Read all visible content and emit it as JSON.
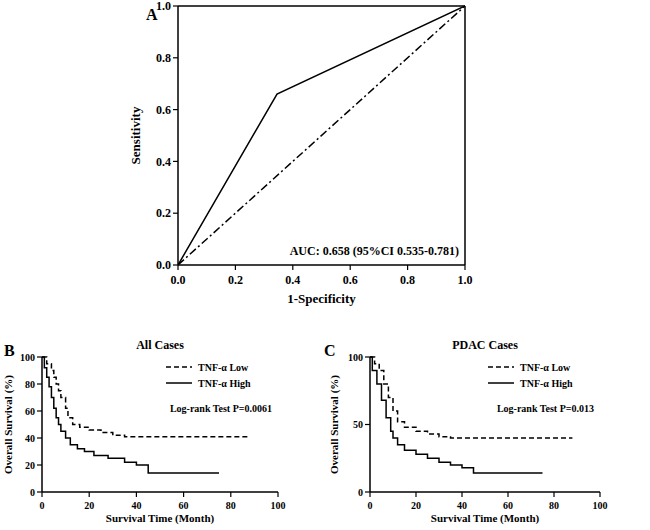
{
  "chart_data": [
    {
      "type": "line",
      "panel": "A",
      "x_label": "1-Specificity",
      "y_label": "Sensitivity",
      "xlim": [
        0,
        1
      ],
      "ylim": [
        0,
        1
      ],
      "xticks": [
        {
          "value": 0,
          "label": "0.0"
        },
        0.2,
        0.4,
        0.6,
        0.8,
        {
          "value": 1,
          "label": "1.0"
        }
      ],
      "yticks": [
        {
          "value": 0,
          "label": "0.0"
        },
        0.2,
        0.4,
        0.6,
        0.8,
        {
          "value": 1,
          "label": "1.0"
        }
      ],
      "annotations": [
        "AUC: 0.658 (95%CI 0.535-0.781)"
      ],
      "series": [
        {
          "x": [
            0,
            0.345,
            1
          ],
          "values": [
            0,
            0.66,
            1
          ],
          "color": "#000000",
          "line_style": "solid"
        },
        {
          "x": [
            0,
            1
          ],
          "values": [
            0,
            1
          ],
          "color": "#000000",
          "line_style": "dashdot"
        }
      ]
    },
    {
      "type": "step",
      "panel": "B",
      "title": "All Cases",
      "x_label": "Survival Time (Month)",
      "y_label": "Overall Survival (%)",
      "xlim": [
        0,
        100
      ],
      "ylim": [
        0,
        100
      ],
      "xticks": [
        0,
        20,
        40,
        60,
        80,
        100
      ],
      "yticks": [
        0,
        20,
        40,
        60,
        80,
        100
      ],
      "legend": "upper right",
      "annotations": [
        "Log-rank Test P=0.0061"
      ],
      "series": [
        {
          "name": "TNF-α Low",
          "color": "#000000",
          "line_style": "dashed",
          "x": [
            0,
            2,
            4,
            5,
            6,
            7,
            8,
            10,
            11,
            13,
            16,
            20,
            25,
            30,
            35,
            88
          ],
          "values": [
            100,
            95,
            90,
            85,
            80,
            75,
            70,
            62,
            55,
            50,
            48,
            46,
            44,
            42,
            41,
            41
          ]
        },
        {
          "name": "TNF-α High",
          "color": "#000000",
          "line_style": "solid",
          "x": [
            0,
            1,
            2,
            3,
            4,
            5,
            6,
            7,
            8,
            10,
            12,
            15,
            18,
            22,
            28,
            35,
            40,
            45,
            75
          ],
          "values": [
            100,
            92,
            85,
            78,
            70,
            62,
            55,
            50,
            45,
            40,
            35,
            32,
            30,
            27,
            25,
            22,
            20,
            14,
            14
          ]
        }
      ]
    },
    {
      "type": "step",
      "panel": "C",
      "title": "PDAC Cases",
      "x_label": "Survival Time (Month)",
      "y_label": "Overall Survival (%)",
      "xlim": [
        0,
        100
      ],
      "ylim": [
        0,
        100
      ],
      "xticks": [
        0,
        20,
        40,
        60,
        80,
        100
      ],
      "yticks": [
        0,
        50,
        100
      ],
      "legend": "upper right",
      "annotations": [
        "Log-rank Test P=0.013"
      ],
      "series": [
        {
          "name": "TNF-α Low",
          "color": "#000000",
          "line_style": "dashed",
          "x": [
            0,
            2,
            4,
            6,
            8,
            10,
            12,
            15,
            20,
            25,
            30,
            35,
            88
          ],
          "values": [
            100,
            95,
            90,
            80,
            70,
            60,
            52,
            48,
            45,
            43,
            41,
            40,
            40
          ]
        },
        {
          "name": "TNF-α High",
          "color": "#000000",
          "line_style": "solid",
          "x": [
            0,
            1,
            3,
            5,
            7,
            9,
            10,
            12,
            15,
            20,
            25,
            30,
            35,
            40,
            45,
            75
          ],
          "values": [
            100,
            90,
            80,
            68,
            55,
            45,
            40,
            35,
            31,
            28,
            25,
            22,
            20,
            18,
            14,
            14
          ]
        }
      ]
    }
  ]
}
